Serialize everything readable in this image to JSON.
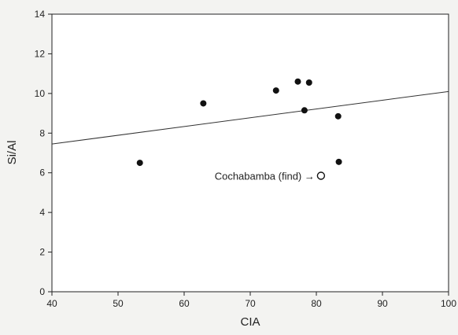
{
  "chart_data": {
    "type": "scatter",
    "xlabel": "CIA",
    "ylabel": "Si/Al",
    "xlim": [
      40,
      100
    ],
    "ylim": [
      0,
      14
    ],
    "xticks": [
      40,
      50,
      60,
      70,
      80,
      90,
      100
    ],
    "yticks": [
      0,
      2,
      4,
      6,
      8,
      10,
      12,
      14
    ],
    "grid": false,
    "series": [
      {
        "marker": "filled-circle",
        "color": "#111111",
        "points": [
          {
            "x": 53.3,
            "y": 6.5
          },
          {
            "x": 62.9,
            "y": 9.5
          },
          {
            "x": 73.9,
            "y": 10.15
          },
          {
            "x": 77.2,
            "y": 10.6
          },
          {
            "x": 78.2,
            "y": 9.15
          },
          {
            "x": 78.9,
            "y": 10.55
          },
          {
            "x": 83.3,
            "y": 8.85
          },
          {
            "x": 83.4,
            "y": 6.55
          }
        ]
      }
    ],
    "trendline": {
      "x": [
        40,
        100
      ],
      "y": [
        7.45,
        10.1
      ],
      "color": "#333333"
    },
    "annotation": {
      "text": "Cochabamba (find) →",
      "point": {
        "x": 80.7,
        "y": 5.85
      },
      "marker": "open-circle"
    }
  }
}
